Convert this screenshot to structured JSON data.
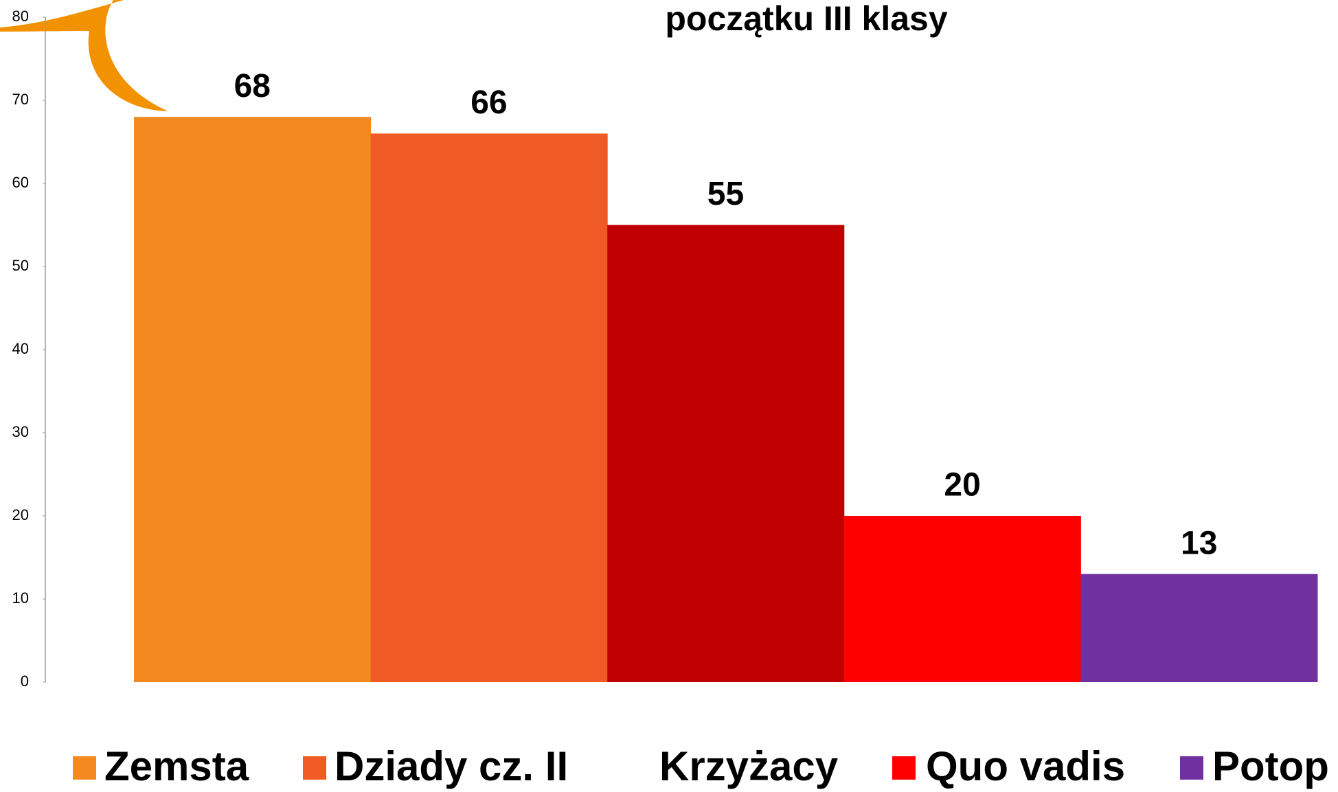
{
  "chart_data": {
    "type": "bar",
    "title": "początku III klasy",
    "categories": [
      "Zemsta",
      "Dziady cz. II",
      "Krzyżacy",
      "Quo vadis",
      "Potop"
    ],
    "values": [
      68,
      66,
      55,
      20,
      13
    ],
    "colors": [
      "#f48a1f",
      "#f05a24",
      "#c00000",
      "#ff0000",
      "#7030a0"
    ],
    "ylim": [
      0,
      80
    ],
    "yticks": [
      0,
      10,
      20,
      30,
      40,
      50,
      60,
      70,
      80
    ]
  }
}
